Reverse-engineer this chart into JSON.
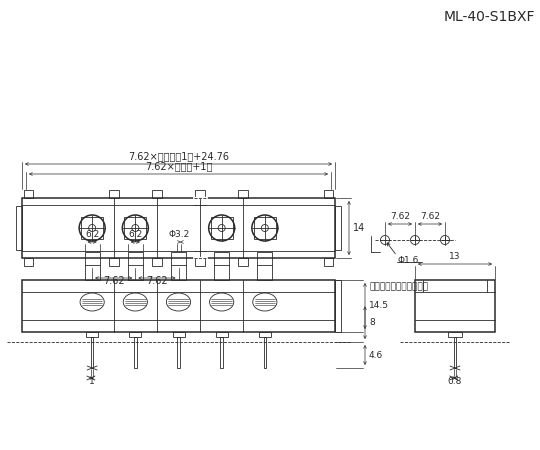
{
  "title": "ML-40-S1BXF",
  "bg_color": "#ffffff",
  "line_color": "#2a2a2a",
  "dim_top1": "7.62×（極数－1）+24.76",
  "dim_top2": "7.62×（極数+1）",
  "dim_height": "14",
  "dim_pitch1": "7.62",
  "dim_pitch2": "7.62",
  "dim_hole": "Φ1.6",
  "dim_hole_pitch1": "7.62",
  "dim_hole_pitch2": "7.62",
  "annotation_ja_hole": "プリント基板用取付孔例",
  "dim_w1": "6.2",
  "dim_w2": "6.2",
  "dim_dia": "Φ3.2",
  "dim_h1": "14.5",
  "dim_h2": "8",
  "dim_h3": "4.6",
  "dim_side": "13",
  "dim_pin1": "1",
  "dim_pin2": "0.8"
}
